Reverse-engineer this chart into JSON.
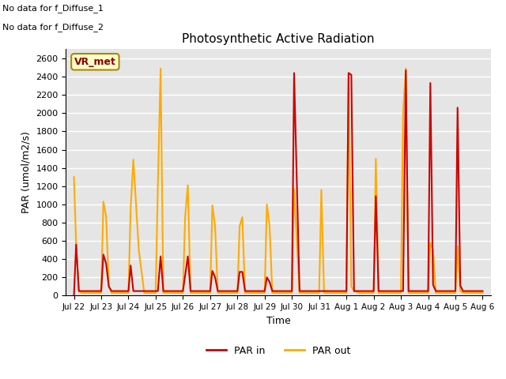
{
  "title": "Photosynthetic Active Radiation",
  "xlabel": "Time",
  "ylabel": "PAR (umol/m2/s)",
  "ylim": [
    0,
    2700
  ],
  "yticks": [
    0,
    200,
    400,
    600,
    800,
    1000,
    1200,
    1400,
    1600,
    1800,
    2000,
    2200,
    2400,
    2600
  ],
  "annotation_text1": "No data for f_Diffuse_1",
  "annotation_text2": "No data for f_Diffuse_2",
  "legend_box_label": "VR_met",
  "legend_box_color": "#ffffcc",
  "legend_box_border": "#aa8800",
  "line_par_in_color": "#cc0000",
  "line_par_out_color": "#ffaa00",
  "bg_color": "#e5e5e5",
  "x_ticklabels": [
    "Jul 22",
    "Jul 23",
    "Jul 24",
    "Jul 25",
    "Jul 26",
    "Jul 27",
    "Jul 28",
    "Jul 29",
    "Jul 30",
    "Jul 31",
    "Aug 1",
    "Aug 2",
    "Aug 3",
    "Aug 4",
    "Aug 5",
    "Aug 6"
  ],
  "par_out_x": [
    0.0,
    0.08,
    0.18,
    0.28,
    1.0,
    1.08,
    1.18,
    1.28,
    1.38,
    2.0,
    2.08,
    2.18,
    2.38,
    2.58,
    3.0,
    3.08,
    3.18,
    3.28,
    4.0,
    4.08,
    4.18,
    4.28,
    4.48,
    5.0,
    5.08,
    5.18,
    5.28,
    5.48,
    6.0,
    6.08,
    6.18,
    6.28,
    6.48,
    7.0,
    7.08,
    7.18,
    7.28,
    7.48,
    8.0,
    8.08,
    8.28,
    9.0,
    9.08,
    9.18,
    10.0,
    10.08,
    10.18,
    10.28,
    10.48,
    11.0,
    11.08,
    11.18,
    12.0,
    12.08,
    12.18,
    12.28,
    13.0,
    13.08,
    13.18,
    13.28,
    13.48,
    14.0,
    14.08,
    14.18,
    14.28,
    15.0
  ],
  "par_out_y": [
    1300,
    560,
    50,
    30,
    30,
    1030,
    870,
    100,
    30,
    30,
    950,
    1490,
    500,
    30,
    30,
    1210,
    2490,
    30,
    30,
    860,
    1210,
    30,
    30,
    30,
    990,
    760,
    30,
    30,
    30,
    760,
    860,
    30,
    30,
    30,
    1000,
    760,
    30,
    30,
    30,
    1170,
    30,
    30,
    1160,
    30,
    30,
    2440,
    100,
    50,
    30,
    30,
    1500,
    30,
    30,
    2000,
    2490,
    30,
    30,
    580,
    500,
    30,
    30,
    30,
    540,
    50,
    30,
    30
  ],
  "par_in_x": [
    0.0,
    0.08,
    0.18,
    0.28,
    1.0,
    1.08,
    1.18,
    1.28,
    1.38,
    2.0,
    2.08,
    2.18,
    2.38,
    3.0,
    3.08,
    3.18,
    3.28,
    4.0,
    4.08,
    4.18,
    4.28,
    4.48,
    5.0,
    5.08,
    5.18,
    5.28,
    5.48,
    6.0,
    6.08,
    6.18,
    6.28,
    6.48,
    7.0,
    7.08,
    7.18,
    7.28,
    7.48,
    8.0,
    8.08,
    8.28,
    9.0,
    9.08,
    9.18,
    10.0,
    10.08,
    10.18,
    10.28,
    10.48,
    11.0,
    11.08,
    11.18,
    12.0,
    12.08,
    12.18,
    12.28,
    13.0,
    13.08,
    13.18,
    13.28,
    13.48,
    14.0,
    14.08,
    14.18,
    14.28,
    15.0
  ],
  "par_in_y": [
    0,
    560,
    50,
    50,
    50,
    450,
    350,
    100,
    50,
    50,
    330,
    50,
    50,
    50,
    50,
    430,
    50,
    50,
    220,
    430,
    50,
    50,
    50,
    270,
    200,
    50,
    50,
    50,
    260,
    260,
    50,
    50,
    50,
    200,
    150,
    50,
    50,
    50,
    2440,
    50,
    50,
    50,
    50,
    50,
    2440,
    2420,
    50,
    50,
    50,
    1090,
    50,
    50,
    50,
    2470,
    50,
    50,
    2330,
    120,
    50,
    50,
    50,
    2060,
    110,
    50,
    50
  ]
}
